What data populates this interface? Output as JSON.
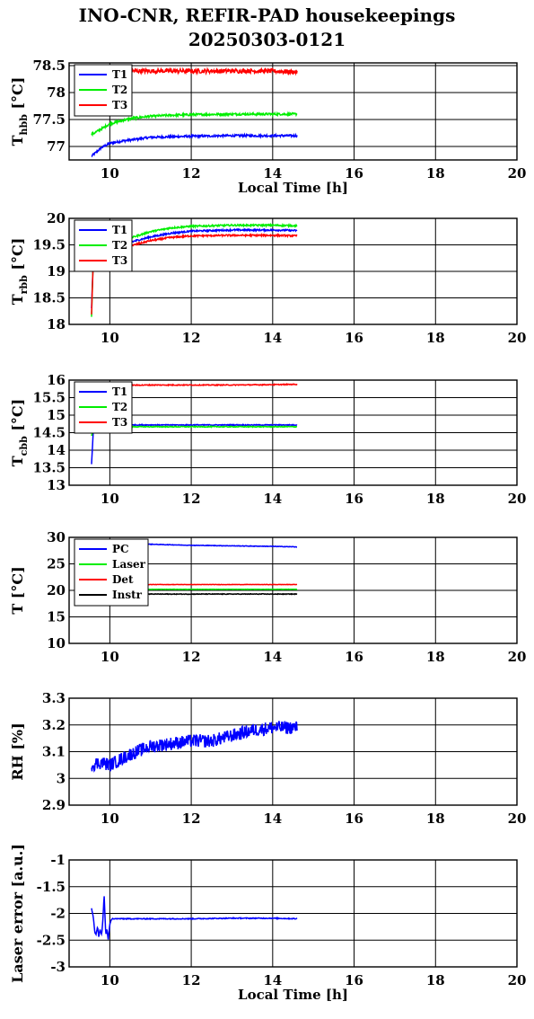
{
  "figure": {
    "title_line1": "INO-CNR, REFIR-PAD housekeepings",
    "title_line2": "20250303-0121"
  },
  "colors": {
    "blue": "#0000ff",
    "green": "#00ee00",
    "red": "#ff0000",
    "black": "#000000"
  },
  "chart_data": [
    {
      "type": "line",
      "id": "thbb",
      "ylabel_main": "T",
      "ylabel_sub": "hbb",
      "ylabel_suffix": " [°C]",
      "xlabel": "Local Time [h]",
      "xlim": [
        9,
        20
      ],
      "ylim": [
        76.75,
        78.55
      ],
      "xticks": [
        "10",
        "12",
        "14",
        "16",
        "18",
        "20"
      ],
      "yticks": [
        "78.5",
        "78",
        "77.5",
        "77"
      ],
      "ytick_values": [
        78.5,
        78,
        77.5,
        77
      ],
      "grid": true,
      "legend_position": "top-left",
      "series": [
        {
          "name": "T1",
          "color": "blue",
          "x": [
            9.55,
            9.8,
            10.0,
            10.3,
            10.6,
            11.0,
            11.5,
            12.0,
            13.0,
            14.0,
            14.6
          ],
          "y": [
            76.82,
            76.98,
            77.06,
            77.1,
            77.13,
            77.17,
            77.18,
            77.19,
            77.2,
            77.2,
            77.2
          ],
          "noise": 0.02
        },
        {
          "name": "T2",
          "color": "green",
          "x": [
            9.55,
            9.8,
            10.0,
            10.3,
            10.6,
            11.0,
            11.5,
            12.0,
            13.0,
            14.0,
            14.6
          ],
          "y": [
            77.22,
            77.33,
            77.42,
            77.48,
            77.53,
            77.56,
            77.58,
            77.59,
            77.6,
            77.6,
            77.6
          ],
          "noise": 0.02
        },
        {
          "name": "T3",
          "color": "red",
          "x": [
            9.55,
            10.0,
            11.0,
            12.0,
            13.0,
            14.0,
            14.6
          ],
          "y": [
            78.42,
            78.4,
            78.4,
            78.4,
            78.4,
            78.4,
            78.38
          ],
          "noise": 0.04
        }
      ]
    },
    {
      "type": "line",
      "id": "trbb",
      "ylabel_main": "T",
      "ylabel_sub": "rbb",
      "ylabel_suffix": " [°C]",
      "xlim": [
        9,
        20
      ],
      "ylim": [
        18,
        20
      ],
      "xticks": [
        "10",
        "12",
        "14",
        "16",
        "18",
        "20"
      ],
      "yticks": [
        "20",
        "19.5",
        "19",
        "18.5",
        "18"
      ],
      "ytick_values": [
        20,
        19.5,
        19,
        18.5,
        18
      ],
      "grid": true,
      "legend_position": "top-left",
      "series": [
        {
          "name": "T1",
          "color": "blue",
          "x": [
            9.55,
            9.6,
            10.0,
            10.5,
            11.0,
            11.5,
            12.0,
            13.0,
            14.0,
            14.6
          ],
          "y": [
            18.3,
            19.4,
            19.45,
            19.55,
            19.65,
            19.72,
            19.76,
            19.78,
            19.78,
            19.77
          ],
          "noise": 0.015
        },
        {
          "name": "T2",
          "color": "green",
          "x": [
            9.55,
            9.6,
            10.0,
            10.5,
            11.0,
            11.5,
            12.0,
            13.0,
            14.0,
            14.6
          ],
          "y": [
            18.15,
            19.45,
            19.5,
            19.63,
            19.75,
            19.82,
            19.85,
            19.87,
            19.87,
            19.86
          ],
          "noise": 0.015
        },
        {
          "name": "T3",
          "color": "red",
          "x": [
            9.55,
            9.6,
            10.0,
            10.5,
            11.0,
            11.5,
            12.0,
            13.0,
            14.0,
            14.6
          ],
          "y": [
            18.2,
            19.35,
            19.4,
            19.48,
            19.58,
            19.64,
            19.67,
            19.68,
            19.68,
            19.67
          ],
          "noise": 0.015
        }
      ]
    },
    {
      "type": "line",
      "id": "tcbb",
      "ylabel_main": "T",
      "ylabel_sub": "cbb",
      "ylabel_suffix": " [°C]",
      "xlim": [
        9,
        20
      ],
      "ylim": [
        13,
        16
      ],
      "xticks": [
        "10",
        "12",
        "14",
        "16",
        "18",
        "20"
      ],
      "yticks": [
        "16",
        "15.5",
        "15",
        "14.5",
        "14",
        "13.5",
        "13"
      ],
      "ytick_values": [
        16,
        15.5,
        15,
        14.5,
        14,
        13.5,
        13
      ],
      "grid": true,
      "legend_position": "top-left",
      "series": [
        {
          "name": "T1",
          "color": "blue",
          "x": [
            9.55,
            9.6,
            10.0,
            11.0,
            12.0,
            13.0,
            14.0,
            14.6
          ],
          "y": [
            13.6,
            14.7,
            14.72,
            14.72,
            14.72,
            14.72,
            14.72,
            14.72
          ],
          "noise": 0.012
        },
        {
          "name": "T2",
          "color": "green",
          "x": [
            9.55,
            9.6,
            10.0,
            11.0,
            12.0,
            13.0,
            14.0,
            14.6
          ],
          "y": [
            14.4,
            14.65,
            14.67,
            14.67,
            14.67,
            14.67,
            14.67,
            14.67
          ],
          "noise": 0.012
        },
        {
          "name": "T3",
          "color": "red",
          "x": [
            9.55,
            10.0,
            11.0,
            12.0,
            13.0,
            14.0,
            14.6
          ],
          "y": [
            15.85,
            15.85,
            15.86,
            15.86,
            15.86,
            15.87,
            15.88
          ],
          "noise": 0.012
        }
      ]
    },
    {
      "type": "line",
      "id": "temps",
      "ylabel_main": "T [°C]",
      "ylabel_sub": "",
      "ylabel_suffix": "",
      "xlim": [
        9,
        20
      ],
      "ylim": [
        10,
        30
      ],
      "xticks": [
        "10",
        "12",
        "14",
        "16",
        "18",
        "20"
      ],
      "yticks": [
        "30",
        "25",
        "20",
        "15",
        "10"
      ],
      "ytick_values": [
        30,
        25,
        20,
        15,
        10
      ],
      "grid": true,
      "legend_position": "top-left",
      "series": [
        {
          "name": "PC",
          "color": "blue",
          "x": [
            9.55,
            10.5,
            11.0,
            12.0,
            13.0,
            14.0,
            14.6
          ],
          "y": [
            28.8,
            28.8,
            28.7,
            28.5,
            28.4,
            28.3,
            28.2
          ],
          "noise": 0.05
        },
        {
          "name": "Laser",
          "color": "green",
          "x": [
            9.55,
            14.6
          ],
          "y": [
            20.2,
            20.2
          ],
          "noise": 0.03
        },
        {
          "name": "Det",
          "color": "red",
          "x": [
            9.55,
            14.6
          ],
          "y": [
            21.1,
            21.1
          ],
          "noise": 0.03
        },
        {
          "name": "Instr",
          "color": "black",
          "x": [
            9.55,
            14.6
          ],
          "y": [
            19.3,
            19.3
          ],
          "noise": 0.06
        }
      ]
    },
    {
      "type": "line",
      "id": "rh",
      "ylabel_main": "RH [%]",
      "ylabel_sub": "",
      "ylabel_suffix": "",
      "xlim": [
        9,
        20
      ],
      "ylim": [
        2.9,
        3.3
      ],
      "xticks": [
        "10",
        "12",
        "14",
        "16",
        "18",
        "20"
      ],
      "yticks": [
        "3.3",
        "3.2",
        "3.1",
        "3",
        "2.9"
      ],
      "ytick_values": [
        3.3,
        3.2,
        3.1,
        3.0,
        2.9
      ],
      "grid": true,
      "legend_position": "none",
      "series": [
        {
          "name": "",
          "color": "blue",
          "x": [
            9.55,
            9.8,
            10.0,
            10.5,
            11.0,
            11.5,
            12.0,
            12.5,
            13.0,
            13.5,
            14.0,
            14.6
          ],
          "y": [
            3.05,
            3.06,
            3.05,
            3.09,
            3.12,
            3.13,
            3.14,
            3.14,
            3.16,
            3.18,
            3.19,
            3.19
          ],
          "noise": 0.025
        }
      ]
    },
    {
      "type": "line",
      "id": "laser",
      "ylabel_main": "Laser error [a.u.]",
      "ylabel_sub": "",
      "ylabel_suffix": "",
      "xlabel": "Local Time [h]",
      "xlim": [
        9,
        20
      ],
      "ylim": [
        -3,
        -1
      ],
      "xticks": [
        "10",
        "12",
        "14",
        "16",
        "18",
        "20"
      ],
      "yticks": [
        "-1",
        "-1.5",
        "-2",
        "-2.5",
        "-3"
      ],
      "ytick_values": [
        -1,
        -1.5,
        -2,
        -2.5,
        -3
      ],
      "grid": true,
      "legend_position": "none",
      "series": [
        {
          "name": "",
          "color": "blue",
          "x": [
            9.55,
            9.6,
            9.63,
            9.66,
            9.7,
            9.73,
            9.76,
            9.8,
            9.83,
            9.86,
            9.9,
            9.93,
            9.96,
            10.0,
            10.05,
            10.1,
            10.2,
            11.0,
            12.0,
            13.0,
            14.0,
            14.6
          ],
          "y": [
            -1.9,
            -2.1,
            -2.35,
            -2.4,
            -2.25,
            -2.45,
            -2.3,
            -2.4,
            -2.1,
            -1.65,
            -2.4,
            -2.3,
            -2.5,
            -2.2,
            -2.1,
            -2.1,
            -2.1,
            -2.1,
            -2.1,
            -2.09,
            -2.09,
            -2.1
          ],
          "noise": 0.008
        }
      ]
    }
  ]
}
